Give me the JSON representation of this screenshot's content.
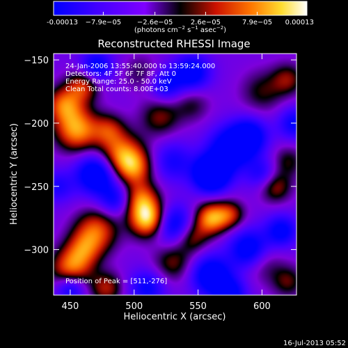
{
  "chart_data": {
    "type": "heatmap",
    "title": "Reconstructed RHESSI Image",
    "xlabel": "Heliocentric X (arcsec)",
    "ylabel": "Heliocentric Y (arcsec)",
    "xlim": [
      437,
      627
    ],
    "ylim": [
      -336,
      -145
    ],
    "x_ticks": [
      450,
      500,
      550,
      600
    ],
    "y_ticks": [
      -150,
      -200,
      -250,
      -300
    ],
    "colorbar": {
      "ticks": [
        "-0.00013",
        "−7.9e−05",
        "−2.6e−05",
        "2.6e−05",
        "7.9e−05",
        "0.00013"
      ],
      "values": [
        -0.00013,
        -7.9e-05,
        -2.6e-05,
        2.6e-05,
        7.9e-05,
        0.00013
      ],
      "range": [
        -0.00013,
        0.00013
      ],
      "colors": [
        "#0000ff",
        "#7f00ff",
        "#000000",
        "#cc2200",
        "#ff8800",
        "#ffff40",
        "#ffffff"
      ],
      "units_label": {
        "pre": "(photons cm",
        "sup1": "−2",
        "mid1": " s",
        "sup2": "−1",
        "mid2": " asec",
        "sup3": "−2",
        "post": ")"
      }
    },
    "annotations": [
      "24-Jan-2006 13:55:40.000 to 13:59:24.000",
      "Detectors: 4F 5F 6F 7F 8F, Att 0",
      "Energy Range: 25.0 - 50.0 keV",
      "Clean    Total counts: 8.00E+03"
    ],
    "peak_label": "Position of Peak = [511,-276]",
    "footer_date": "16-Jul-2013 05:52",
    "blobs": [
      {
        "x": 455,
        "y": -205,
        "v": 1.0,
        "s": 12
      },
      {
        "x": 445,
        "y": -185,
        "v": 0.8,
        "s": 10
      },
      {
        "x": 460,
        "y": -170,
        "v": 0.7,
        "s": 9
      },
      {
        "x": 490,
        "y": -225,
        "v": 0.9,
        "s": 12
      },
      {
        "x": 500,
        "y": -235,
        "v": 0.7,
        "s": 10
      },
      {
        "x": 480,
        "y": -205,
        "v": 0.55,
        "s": 9
      },
      {
        "x": 505,
        "y": -260,
        "v": 0.8,
        "s": 10
      },
      {
        "x": 511,
        "y": -276,
        "v": 1.2,
        "s": 10
      },
      {
        "x": 470,
        "y": -285,
        "v": 0.8,
        "s": 12
      },
      {
        "x": 450,
        "y": -315,
        "v": 0.85,
        "s": 11
      },
      {
        "x": 460,
        "y": -300,
        "v": 0.6,
        "s": 10
      },
      {
        "x": 478,
        "y": -330,
        "v": 0.6,
        "s": 9
      },
      {
        "x": 530,
        "y": -310,
        "v": 0.5,
        "s": 11
      },
      {
        "x": 560,
        "y": -275,
        "v": 1.0,
        "s": 9
      },
      {
        "x": 575,
        "y": -272,
        "v": 0.6,
        "s": 8
      },
      {
        "x": 545,
        "y": -290,
        "v": 0.55,
        "s": 9
      },
      {
        "x": 520,
        "y": -195,
        "v": 0.5,
        "s": 11
      },
      {
        "x": 545,
        "y": -185,
        "v": 0.35,
        "s": 10
      },
      {
        "x": 505,
        "y": -160,
        "v": 0.3,
        "s": 10
      },
      {
        "x": 600,
        "y": -175,
        "v": 0.4,
        "s": 12
      },
      {
        "x": 620,
        "y": -165,
        "v": 0.5,
        "s": 9
      },
      {
        "x": 610,
        "y": -250,
        "v": 0.6,
        "s": 9
      },
      {
        "x": 620,
        "y": -230,
        "v": 0.4,
        "s": 9
      },
      {
        "x": 600,
        "y": -310,
        "v": 0.4,
        "s": 11
      },
      {
        "x": 620,
        "y": -325,
        "v": 0.45,
        "s": 9
      },
      {
        "x": 470,
        "y": -240,
        "v": -1.0,
        "s": 11
      },
      {
        "x": 470,
        "y": -155,
        "v": -0.7,
        "s": 9
      },
      {
        "x": 530,
        "y": -230,
        "v": -0.5,
        "s": 11
      },
      {
        "x": 560,
        "y": -240,
        "v": -1.3,
        "s": 10
      },
      {
        "x": 575,
        "y": -220,
        "v": -0.9,
        "s": 12
      },
      {
        "x": 590,
        "y": -210,
        "v": -0.8,
        "s": 10
      },
      {
        "x": 600,
        "y": -240,
        "v": -0.5,
        "s": 9
      },
      {
        "x": 545,
        "y": -160,
        "v": -0.8,
        "s": 10
      },
      {
        "x": 525,
        "y": -170,
        "v": -0.6,
        "s": 9
      },
      {
        "x": 485,
        "y": -260,
        "v": -0.6,
        "s": 9
      },
      {
        "x": 440,
        "y": -250,
        "v": -0.45,
        "s": 9
      },
      {
        "x": 530,
        "y": -280,
        "v": -0.8,
        "s": 11
      },
      {
        "x": 560,
        "y": -320,
        "v": -0.9,
        "s": 11
      },
      {
        "x": 590,
        "y": -300,
        "v": -0.9,
        "s": 11
      },
      {
        "x": 575,
        "y": -335,
        "v": -0.7,
        "s": 9
      },
      {
        "x": 510,
        "y": -330,
        "v": -0.6,
        "s": 10
      },
      {
        "x": 450,
        "y": -330,
        "v": -0.7,
        "s": 8
      },
      {
        "x": 615,
        "y": -285,
        "v": -0.7,
        "s": 9
      },
      {
        "x": 625,
        "y": -200,
        "v": -0.6,
        "s": 9
      }
    ]
  }
}
